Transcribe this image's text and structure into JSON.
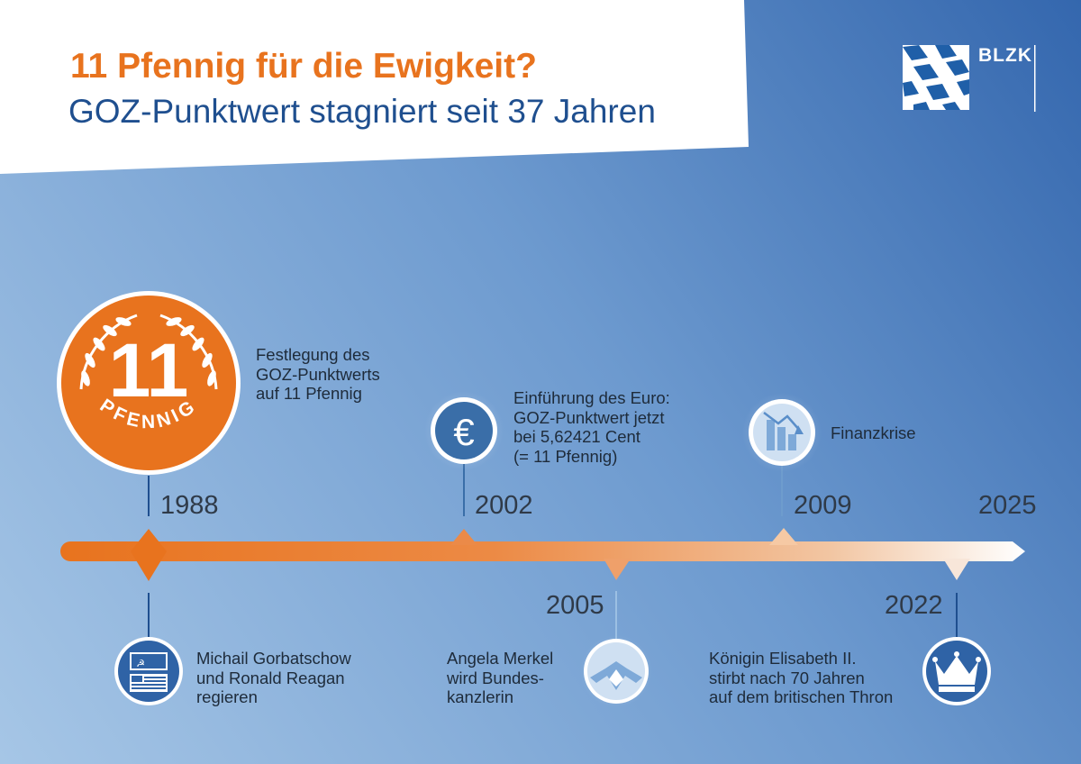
{
  "header": {
    "title": "11 Pfennig für die Ewigkeit?",
    "subtitle": "GOZ-Punktwert stagniert seit 37 Jahren",
    "brand": "BLZK"
  },
  "coin": {
    "value": "11",
    "label": "PFENNIG"
  },
  "icons": {
    "euro_symbol": "€"
  },
  "timeline": {
    "end_year": "2025",
    "events": [
      {
        "year": "1988",
        "lines": [
          "Festlegung des",
          "GOZ-Punktwerts",
          "auf 11 Pfennig"
        ],
        "icon": "pfennig-coin-icon"
      },
      {
        "year": "2002",
        "lines": [
          "Einführung des Euro:",
          "GOZ-Punktwert jetzt",
          "bei 5,62421 Cent",
          "(= 11 Pfennig)"
        ],
        "icon": "euro-icon"
      },
      {
        "year": "2009",
        "lines": [
          "Finanzkrise"
        ],
        "icon": "falling-bar-chart-icon"
      },
      {
        "year": "1988",
        "lines": [
          "Michail Gorbatschow",
          "und Ronald Reagan",
          "regieren"
        ],
        "icon": "soviet-us-flags-icon"
      },
      {
        "year": "2005",
        "lines": [
          "Angela Merkel",
          "wird Bundes-",
          "kanzlerin"
        ],
        "icon": "merkel-raute-hands-icon"
      },
      {
        "year": "2022",
        "lines": [
          "Königin Elisabeth II.",
          "stirbt nach 70 Jahren",
          "auf dem britischen Thron"
        ],
        "icon": "crown-icon"
      }
    ]
  },
  "colors": {
    "orange": "#e8731e",
    "navy": "#1f4f8f",
    "icon_blue": "#3a6ea8",
    "background_light": "#a6c6e6",
    "background_dark": "#3467ae"
  }
}
